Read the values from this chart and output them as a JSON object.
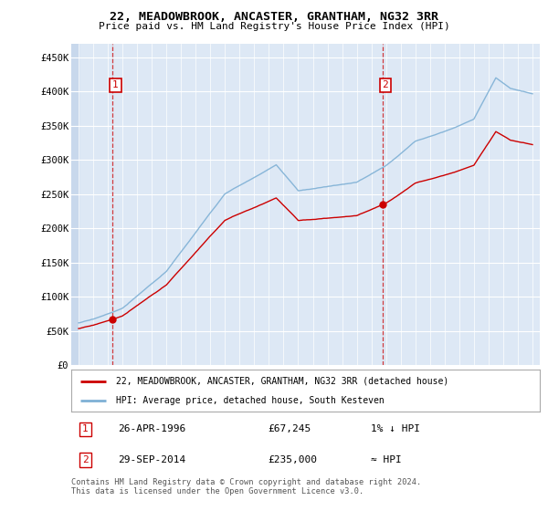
{
  "title": "22, MEADOWBROOK, ANCASTER, GRANTHAM, NG32 3RR",
  "subtitle": "Price paid vs. HM Land Registry's House Price Index (HPI)",
  "legend_line1": "22, MEADOWBROOK, ANCASTER, GRANTHAM, NG32 3RR (detached house)",
  "legend_line2": "HPI: Average price, detached house, South Kesteven",
  "footnote": "Contains HM Land Registry data © Crown copyright and database right 2024.\nThis data is licensed under the Open Government Licence v3.0.",
  "annotation1_date": "26-APR-1996",
  "annotation1_price": "£67,245",
  "annotation1_hpi": "1% ↓ HPI",
  "annotation2_date": "29-SEP-2014",
  "annotation2_price": "£235,000",
  "annotation2_hpi": "≈ HPI",
  "sale1_year": 1996.32,
  "sale1_value": 67245,
  "sale2_year": 2014.75,
  "sale2_value": 235000,
  "hpi_line_color": "#7eb0d5",
  "price_line_color": "#cc0000",
  "background_plot": "#dde8f5",
  "background_hatch": "#c8d8ec",
  "grid_color": "#ffffff",
  "ylim": [
    0,
    470000
  ],
  "xlim_start": 1993.5,
  "xlim_end": 2025.5,
  "yticks": [
    0,
    50000,
    100000,
    150000,
    200000,
    250000,
    300000,
    350000,
    400000,
    450000
  ],
  "ytick_labels": [
    "£0",
    "£50K",
    "£100K",
    "£150K",
    "£200K",
    "£250K",
    "£300K",
    "£350K",
    "£400K",
    "£450K"
  ]
}
